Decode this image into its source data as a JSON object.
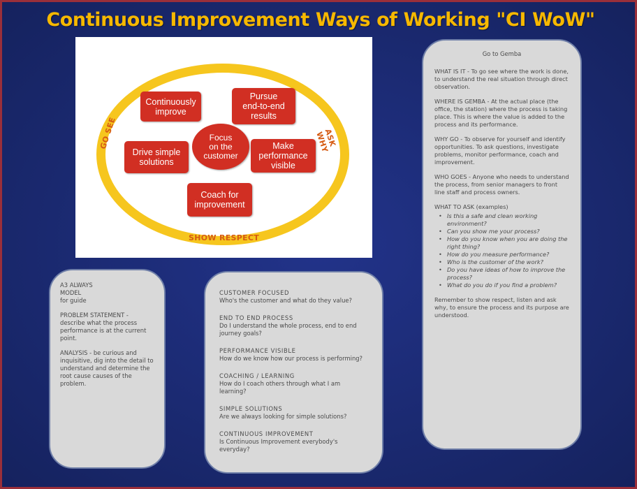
{
  "title": "Continuous Improvement Ways of Working \"CI WoW\"",
  "diagram": {
    "ring_labels": {
      "left": "GO SEE",
      "right": "ASK WHY",
      "bottom": "SHOW RESPECT"
    },
    "center": "Focus\non the\ncustomer",
    "boxes": {
      "continuously_improve": "Continuously\nimprove",
      "pursue_end_to_end": "Pursue\nend-to-end\nresults",
      "drive_simple": "Drive simple\nsolutions",
      "make_visible": "Make\nperformance\nvisible",
      "coach": "Coach for\nimprovement"
    }
  },
  "left_card": {
    "paragraphs": [
      "A3 ALWAYS\nMODEL\nfor guide",
      "PROBLEM STATEMENT - describe what the process performance is at the current point.",
      "ANALYSIS - be curious and inquisitive, dig into the detail to understand and determine the root cause causes of the problem."
    ]
  },
  "mid_card": {
    "items": [
      {
        "head": "CUSTOMER FOCUSED",
        "body": "Who's the customer and what do they value?"
      },
      {
        "head": "END TO END PROCESS",
        "body": "Do I understand the whole process, end to end journey goals?"
      },
      {
        "head": "PERFORMANCE VISIBLE",
        "body": "How do we know how our process is performing?"
      },
      {
        "head": "COACHING / LEARNING",
        "body": "How do I coach others through what I am learning?"
      },
      {
        "head": "SIMPLE SOLUTIONS",
        "body": "Are we always looking for simple solutions?"
      },
      {
        "head": "CONTINUOUS IMPROVEMENT",
        "body": "Is Continuous Improvement everybody's everyday?"
      }
    ]
  },
  "right_card": {
    "title": "Go to Gemba",
    "paragraphs": [
      "WHAT IS IT - To go see where the work is done, to understand the real situation through direct observation.",
      "WHERE IS GEMBA - At the actual place (the office, the station) where the process is taking place. This is where the value is added to the process and its performance.",
      "WHY GO - To observe for yourself and identify opportunities. To ask questions, investigate problems, monitor performance, coach and improvement.",
      "WHO GOES - Anyone who needs to understand the process, from senior managers to front line staff and process owners."
    ],
    "list_heading": "WHAT TO ASK (examples)",
    "list": [
      "Is this a safe and clean working environment?",
      "Can you show me your process?",
      "How do you know when you are doing the right thing?",
      "How do you measure performance?",
      "Who is the customer of the work?",
      "Do you have ideas of how to improve the process?",
      "What do you do if you find a problem?"
    ],
    "closing": "Remember to show respect, listen and ask why, to ensure the process and its purpose are understood."
  }
}
